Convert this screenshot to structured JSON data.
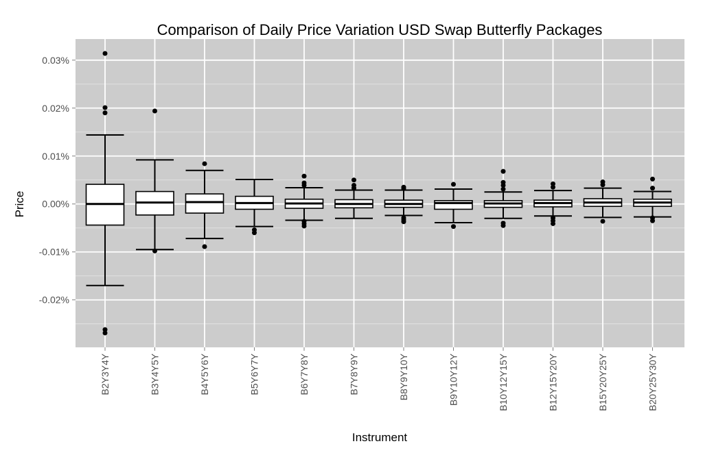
{
  "chart_data": {
    "type": "boxplot",
    "title": "Comparison of Daily Price Variation USD Swap Butterfly Packages",
    "xlabel": "Instrument",
    "ylabel": "Price",
    "ylim": [
      -0.0299,
      0.0344
    ],
    "yticks": [
      0.03,
      0.02,
      0.01,
      0.0,
      -0.01,
      -0.02
    ],
    "ytick_labels": [
      "0.03%",
      "0.02%",
      "0.01%",
      "0.00%",
      "-0.01%",
      "-0.02%"
    ],
    "grid": true,
    "panel_background": "#cccccc",
    "grid_color": "#ffffff",
    "box_fill": "#ffffff",
    "categories": [
      "B2Y3Y4Y",
      "B3Y4Y5Y",
      "B4Y5Y6Y",
      "B5Y6Y7Y",
      "B6Y7Y8Y",
      "B7Y8Y9Y",
      "B8Y9Y10Y",
      "B9Y10Y12Y",
      "B10Y12Y15Y",
      "B12Y15Y20Y",
      "B15Y20Y25Y",
      "B20Y25Y30Y"
    ],
    "boxes": [
      {
        "whisker_low": -0.017,
        "q1": -0.0044,
        "median": 0.0,
        "q3": 0.0041,
        "whisker_high": 0.0144,
        "outliers": [
          0.0314,
          0.0201,
          0.019,
          -0.0262,
          -0.0269
        ]
      },
      {
        "whisker_low": -0.0095,
        "q1": -0.0023,
        "median": 0.0003,
        "q3": 0.0026,
        "whisker_high": 0.0092,
        "outliers": [
          0.0194,
          -0.0098
        ]
      },
      {
        "whisker_low": -0.0072,
        "q1": -0.0019,
        "median": 0.0004,
        "q3": 0.0021,
        "whisker_high": 0.007,
        "outliers": [
          0.0084,
          -0.0089
        ]
      },
      {
        "whisker_low": -0.0047,
        "q1": -0.0011,
        "median": 0.0002,
        "q3": 0.0016,
        "whisker_high": 0.0051,
        "outliers": [
          -0.0054,
          -0.006
        ]
      },
      {
        "whisker_low": -0.0034,
        "q1": -0.0009,
        "median": 0.0001,
        "q3": 0.001,
        "whisker_high": 0.0034,
        "outliers": [
          0.0058,
          0.0044,
          0.0039,
          -0.0036,
          -0.0041,
          -0.0046
        ]
      },
      {
        "whisker_low": -0.003,
        "q1": -0.0008,
        "median": 0.0,
        "q3": 0.0009,
        "whisker_high": 0.0029,
        "outliers": [
          0.005,
          0.0039,
          0.0033
        ]
      },
      {
        "whisker_low": -0.0024,
        "q1": -0.0007,
        "median": 0.0,
        "q3": 0.0008,
        "whisker_high": 0.0029,
        "outliers": [
          0.0035,
          0.0032,
          -0.0029,
          -0.0033,
          -0.0037
        ]
      },
      {
        "whisker_low": -0.0039,
        "q1": -0.0011,
        "median": 0.0002,
        "q3": 0.0007,
        "whisker_high": 0.0031,
        "outliers": [
          0.0041,
          -0.0047
        ]
      },
      {
        "whisker_low": -0.003,
        "q1": -0.0007,
        "median": 0.0001,
        "q3": 0.0007,
        "whisker_high": 0.0025,
        "outliers": [
          0.0068,
          0.0045,
          0.0039,
          0.0031,
          -0.004,
          -0.0045
        ]
      },
      {
        "whisker_low": -0.0025,
        "q1": -0.0006,
        "median": 0.0002,
        "q3": 0.0008,
        "whisker_high": 0.0028,
        "outliers": [
          0.0042,
          0.0035,
          -0.0029,
          -0.0035,
          -0.0041
        ]
      },
      {
        "whisker_low": -0.0028,
        "q1": -0.0005,
        "median": 0.0003,
        "q3": 0.0011,
        "whisker_high": 0.0033,
        "outliers": [
          0.0046,
          0.004,
          -0.0036
        ]
      },
      {
        "whisker_low": -0.0027,
        "q1": -0.0005,
        "median": 0.0003,
        "q3": 0.001,
        "whisker_high": 0.0026,
        "outliers": [
          0.0052,
          0.0033,
          -0.0029,
          -0.0035
        ]
      }
    ]
  }
}
